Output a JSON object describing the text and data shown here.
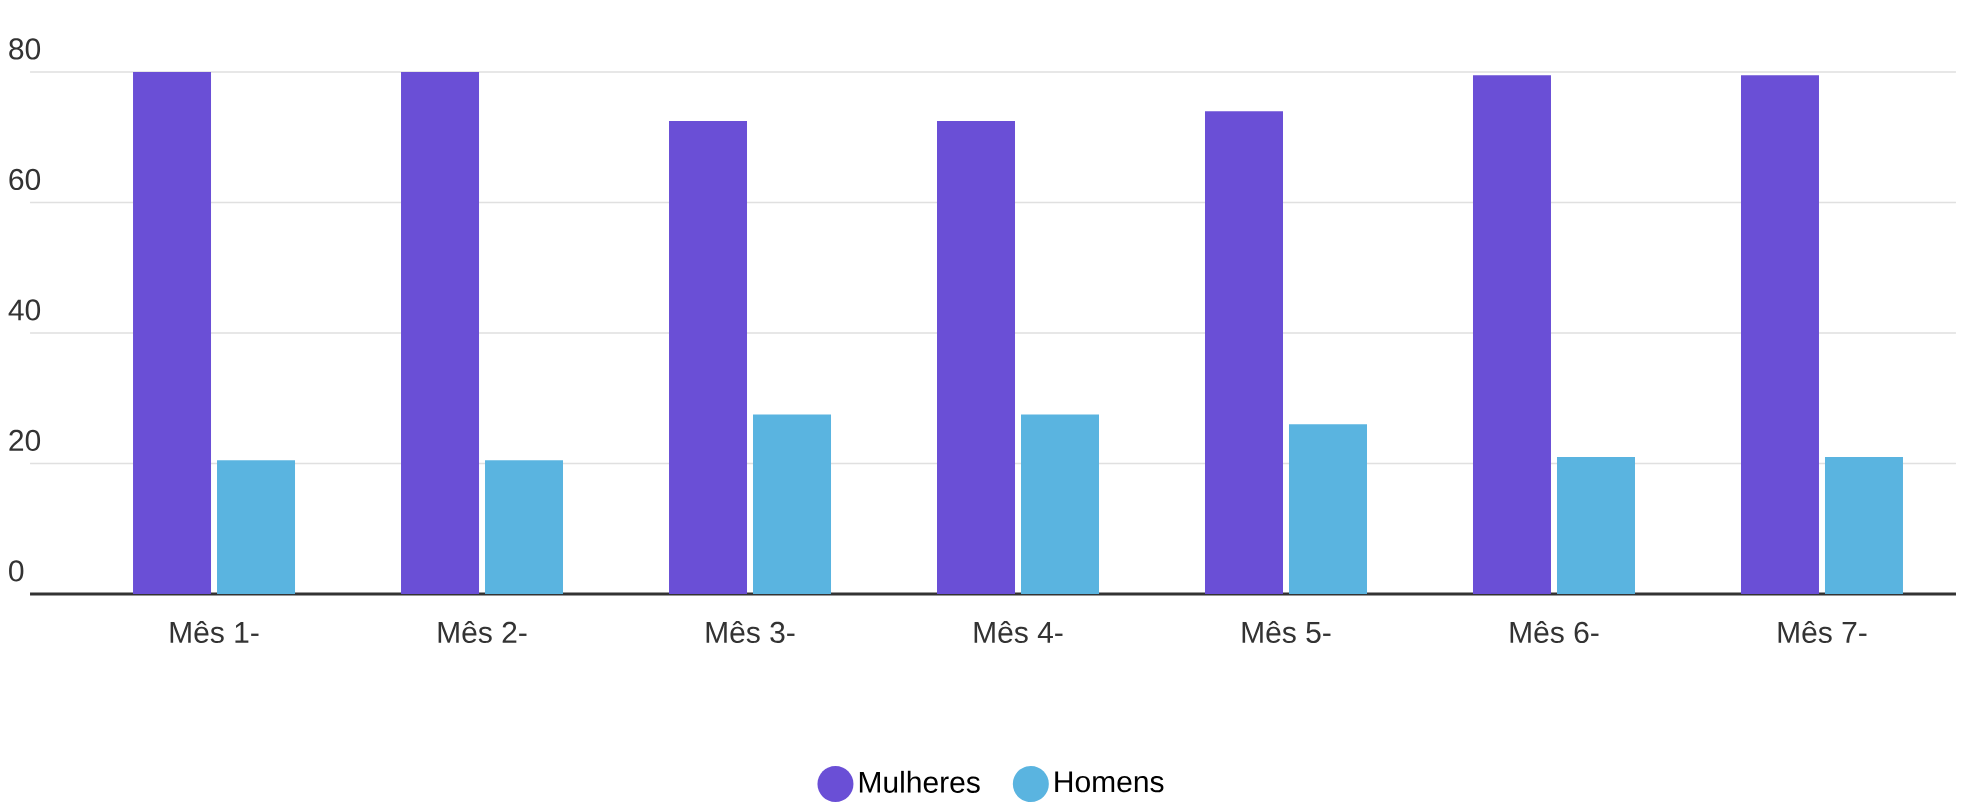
{
  "chart_data": {
    "type": "bar",
    "categories": [
      "Mês 1-",
      "Mês 2-",
      "Mês 3-",
      "Mês 4-",
      "Mês 5-",
      "Mês 6-",
      "Mês 7-"
    ],
    "series": [
      {
        "name": "Mulheres",
        "color": "#6a4fd6",
        "values": [
          80,
          80,
          72.5,
          72.5,
          74,
          79.5,
          79.5
        ]
      },
      {
        "name": "Homens",
        "color": "#5ab4e0",
        "values": [
          20.5,
          20.5,
          27.5,
          27.5,
          26,
          21,
          21
        ]
      }
    ],
    "ylim": [
      0,
      80
    ],
    "yticks": [
      0,
      20,
      40,
      60,
      80
    ],
    "grid": "y",
    "legend": "bottom"
  }
}
